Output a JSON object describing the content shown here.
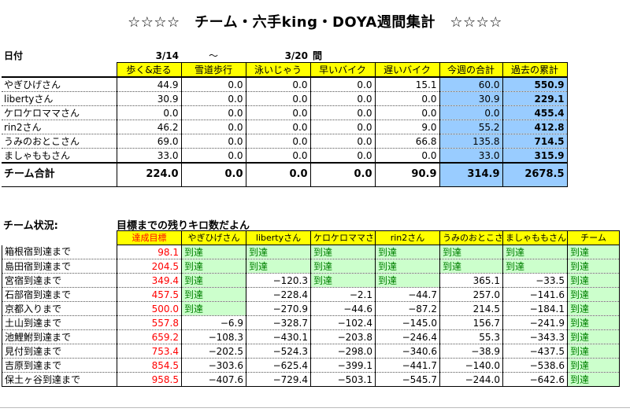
{
  "title": "☆☆☆☆　チーム・六手king・DOYA週間集計　☆☆☆☆",
  "weekly": {
    "date_label": "日付",
    "date_from": "3/14",
    "date_sep": "～",
    "date_to": "3/20",
    "date_suffix": "間",
    "headers": [
      "歩く&走る",
      "雪道歩行",
      "泳いじゃう",
      "早いバイク",
      "遅いバイク",
      "今週の合計",
      "過去の累計"
    ],
    "rows": [
      {
        "name": "やぎひげさん",
        "values": [
          "44.9",
          "0.0",
          "0.0",
          "0.0",
          "15.1",
          "60.0",
          "550.9"
        ]
      },
      {
        "name": "libertyさん",
        "values": [
          "30.9",
          "0.0",
          "0.0",
          "0.0",
          "0.0",
          "30.9",
          "229.1"
        ]
      },
      {
        "name": "ケロケロママさん",
        "values": [
          "0.0",
          "0.0",
          "0.0",
          "0.0",
          "0.0",
          "0.0",
          "455.4"
        ]
      },
      {
        "name": "rin2さん",
        "values": [
          "46.2",
          "0.0",
          "0.0",
          "0.0",
          "9.0",
          "55.2",
          "412.8"
        ]
      },
      {
        "name": "うみのおとこさん",
        "values": [
          "69.0",
          "0.0",
          "0.0",
          "0.0",
          "66.8",
          "135.8",
          "714.5"
        ]
      },
      {
        "name": "ましゃももさん",
        "values": [
          "33.0",
          "0.0",
          "0.0",
          "0.0",
          "0.0",
          "33.0",
          "315.9"
        ]
      }
    ],
    "total": {
      "name": "チーム合計",
      "values": [
        "224.0",
        "0.0",
        "0.0",
        "0.0",
        "90.9",
        "314.9",
        "2678.5"
      ]
    }
  },
  "status": {
    "label": "チーム状況:",
    "subtitle": "目標までの残りキロ数だよん",
    "headers": [
      "達成目標",
      "やぎひげさん",
      "libertyさん",
      "ケロケロママさん",
      "rin2さん",
      "うみのおとこさん",
      "ましゃももさん",
      "チーム"
    ],
    "rows": [
      {
        "name": "箱根宿到達まで",
        "target": "98.1",
        "cells": [
          "到達",
          "到達",
          "到達",
          "到達",
          "到達",
          "到達",
          "到達"
        ]
      },
      {
        "name": "島田宿到達まで",
        "target": "204.5",
        "cells": [
          "到達",
          "到達",
          "到達",
          "到達",
          "到達",
          "到達",
          "到達"
        ]
      },
      {
        "name": "宮宿到達まで",
        "target": "349.4",
        "cells": [
          "到達",
          "−120.3",
          "到達",
          "到達",
          "365.1",
          "−33.5",
          "到達"
        ]
      },
      {
        "name": "石部宿到達まで",
        "target": "457.5",
        "cells": [
          "到達",
          "−228.4",
          "−2.1",
          "−44.7",
          "257.0",
          "−141.6",
          "到達"
        ]
      },
      {
        "name": "京都入りまで",
        "target": "500.0",
        "cells": [
          "到達",
          "−270.9",
          "−44.6",
          "−87.2",
          "214.5",
          "−184.1",
          "到達"
        ]
      },
      {
        "name": "土山到達まで",
        "target": "557.8",
        "cells": [
          "−6.9",
          "−328.7",
          "−102.4",
          "−145.0",
          "156.7",
          "−241.9",
          "到達"
        ]
      },
      {
        "name": "池鯉鮒到達まで",
        "target": "659.2",
        "cells": [
          "−108.3",
          "−430.1",
          "−203.8",
          "−246.4",
          "55.3",
          "−343.3",
          "到達"
        ]
      },
      {
        "name": "見付到達まで",
        "target": "753.4",
        "cells": [
          "−202.5",
          "−524.3",
          "−298.0",
          "−340.6",
          "−38.9",
          "−437.5",
          "到達"
        ]
      },
      {
        "name": "吉原到達まで",
        "target": "854.5",
        "cells": [
          "−303.6",
          "−625.4",
          "−399.1",
          "−441.7",
          "−140.0",
          "−538.6",
          "到達"
        ]
      },
      {
        "name": "保土ヶ谷到達まで",
        "target": "958.5",
        "cells": [
          "−407.6",
          "−729.4",
          "−503.1",
          "−545.7",
          "−244.0",
          "−642.6",
          "到達"
        ]
      }
    ]
  }
}
